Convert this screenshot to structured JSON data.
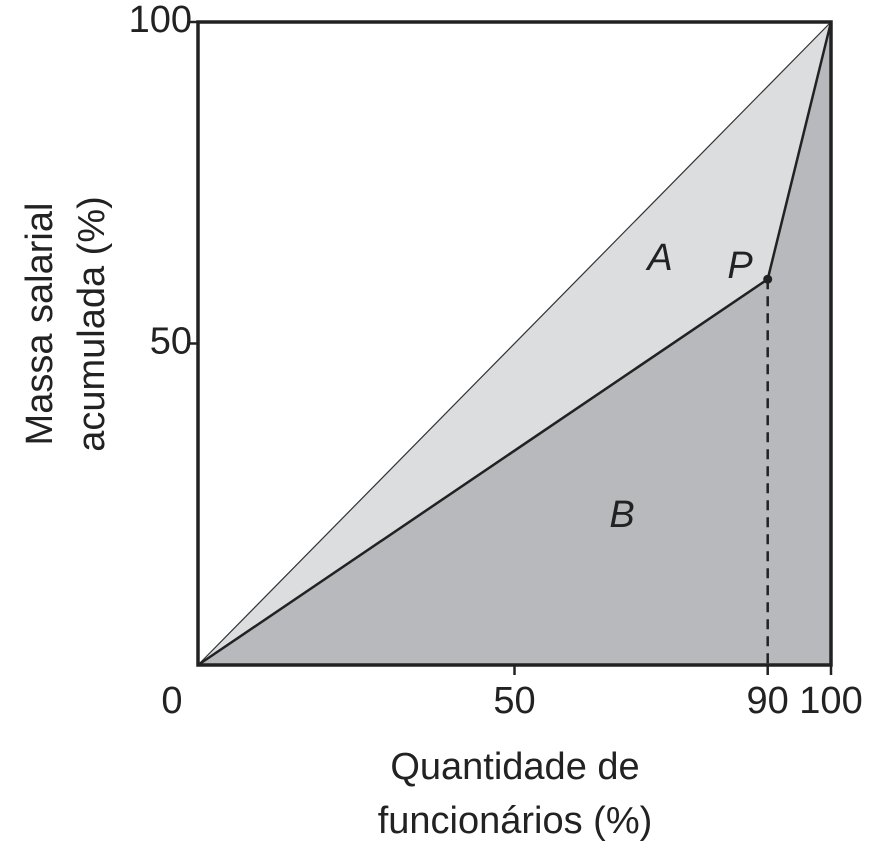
{
  "chart_data": {
    "type": "line",
    "x_label": [
      "Quantidade de",
      "funcionários (%)"
    ],
    "y_label": [
      "Massa salarial",
      "acumulada (%)"
    ],
    "series": [
      {
        "x": [
          0,
          100
        ],
        "values": [
          0,
          100
        ],
        "color": "#333333"
      },
      {
        "x": [
          0,
          90,
          100
        ],
        "values": [
          0,
          60,
          100
        ],
        "color": "#222222"
      }
    ],
    "area_colors": [
      "#dcdddf",
      "#b8b9bc"
    ],
    "annotations": [
      "A",
      "B",
      "P"
    ],
    "xlim": [
      0,
      100
    ],
    "ylim": [
      0,
      100
    ],
    "xticks": [
      0,
      50,
      90,
      100
    ],
    "yticks": [
      50,
      100
    ]
  }
}
